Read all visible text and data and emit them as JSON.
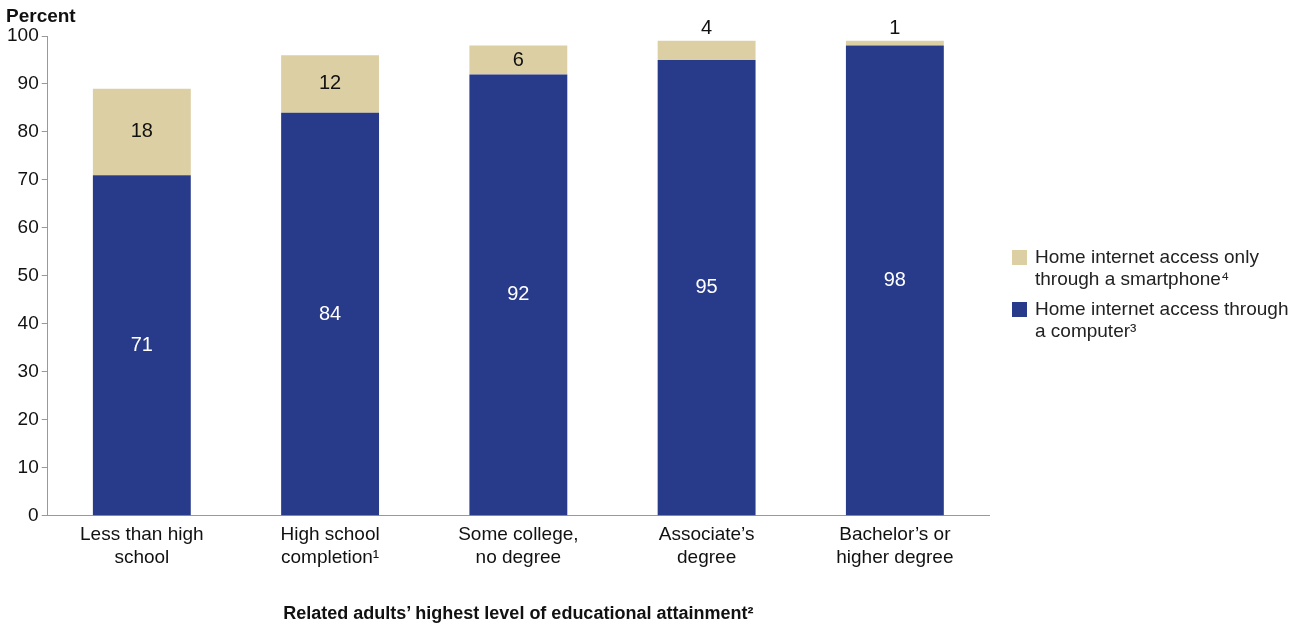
{
  "chart_data": {
    "type": "bar",
    "stacked": true,
    "ylabel": "Percent",
    "xlabel": "Related adults’ highest level of educational attainment²",
    "categories": [
      "Less than high school",
      "High school completion¹",
      "Some college, no degree",
      "Associate’s degree",
      "Bachelor’s or higher degree"
    ],
    "series": [
      {
        "name": "Home internet access through a computer³",
        "color": "#283a8a",
        "values": [
          71,
          84,
          92,
          95,
          98
        ]
      },
      {
        "name": "Home internet access only through a smartphone⁴",
        "color": "#dccfa3",
        "values": [
          18,
          12,
          6,
          4,
          1
        ]
      }
    ],
    "ylim": [
      0,
      100
    ],
    "yticks": [
      0,
      10,
      20,
      30,
      40,
      50,
      60,
      70,
      80,
      90,
      100
    ],
    "grid": false,
    "legend": "right",
    "data_labels": true
  }
}
